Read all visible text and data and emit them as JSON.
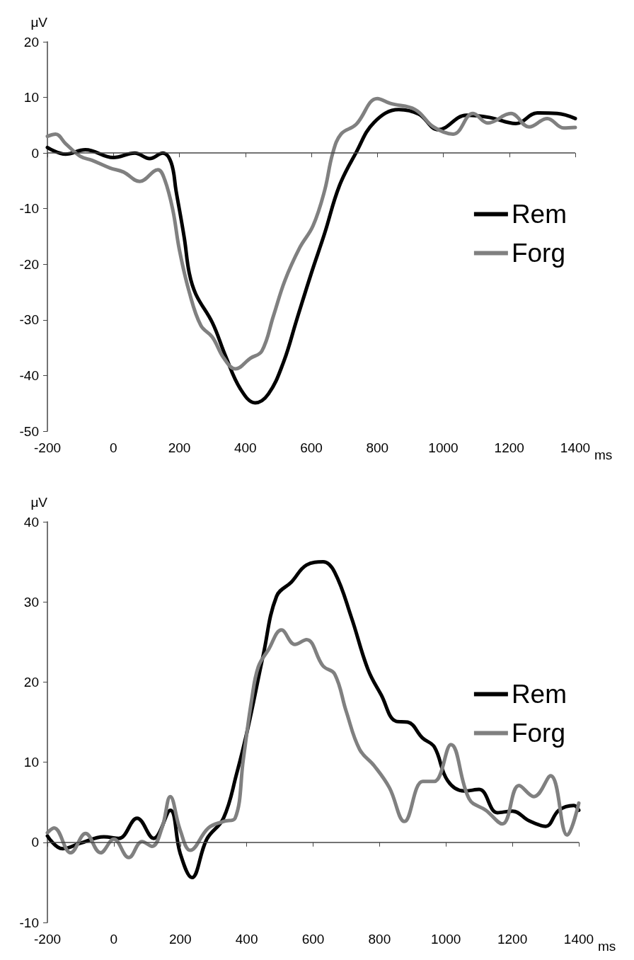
{
  "chart_data": [
    {
      "type": "line",
      "xlabel": "ms",
      "ylabel": "μV",
      "xlim": [
        -200,
        1400
      ],
      "xticks": [
        -200,
        0,
        200,
        400,
        600,
        800,
        1000,
        1200,
        1400
      ],
      "ylim": [
        -50,
        20
      ],
      "yticks": [
        -50,
        -40,
        -30,
        -20,
        -10,
        0,
        10,
        20
      ],
      "grid": false,
      "ref_lines": [
        {
          "axis": "y",
          "value": 0,
          "color": "#444444"
        }
      ],
      "legend": "right",
      "marker": "none",
      "series": [
        {
          "name": "Rem",
          "color": "#000000",
          "x": [
            -200,
            -145,
            -85,
            0,
            65,
            110,
            150,
            175,
            190,
            215,
            230,
            250,
            300,
            340,
            385,
            430,
            470,
            515,
            555,
            600,
            640,
            685,
            735,
            790,
            865,
            925,
            985,
            1070,
            1140,
            1220,
            1285,
            1345,
            1400
          ],
          "values": [
            1,
            -0.2,
            0.6,
            -0.8,
            0,
            -1,
            0,
            -1.7,
            -6.8,
            -15.3,
            -21.6,
            -25.4,
            -30.5,
            -36.5,
            -42.4,
            -44.9,
            -43.3,
            -37.7,
            -30.1,
            -21.6,
            -14.5,
            -5.9,
            0,
            5.5,
            7.8,
            7,
            4.2,
            6.8,
            6.4,
            5.3,
            7.2,
            7.1,
            6.2
          ]
        },
        {
          "name": "Forg",
          "color": "#808080",
          "x": [
            -200,
            -175,
            -145,
            -100,
            -65,
            -10,
            30,
            80,
            135,
            155,
            180,
            200,
            230,
            265,
            300,
            335,
            370,
            415,
            450,
            485,
            520,
            565,
            605,
            640,
            665,
            690,
            735,
            800,
            840,
            915,
            970,
            1030,
            1090,
            1135,
            1205,
            1260,
            1315,
            1365,
            1400
          ],
          "values": [
            3,
            3.4,
            1.7,
            -0.6,
            -1.3,
            -2.7,
            -3.4,
            -5.1,
            -3,
            -4.7,
            -10.2,
            -17.4,
            -25,
            -31,
            -33.1,
            -36.9,
            -38.8,
            -36.9,
            -35.6,
            -29.3,
            -22.9,
            -17,
            -13.1,
            -6.8,
            0,
            3.4,
            5.1,
            9.8,
            8.9,
            7.8,
            4.7,
            3.4,
            7.1,
            5.4,
            7.1,
            4.7,
            6.2,
            4.5,
            4.6
          ]
        }
      ]
    },
    {
      "type": "line",
      "xlabel": "ms",
      "ylabel": "μV",
      "xlim": [
        -200,
        1400
      ],
      "xticks": [
        -200,
        0,
        200,
        400,
        600,
        800,
        1000,
        1200,
        1400
      ],
      "ylim": [
        -10,
        40
      ],
      "yticks": [
        -10,
        0,
        10,
        20,
        30,
        40
      ],
      "grid": false,
      "ref_lines": [
        {
          "axis": "y",
          "value": 0,
          "color": "#444444"
        }
      ],
      "legend": "right",
      "marker": "none",
      "series": [
        {
          "name": "Rem",
          "color": "#000000",
          "x": [
            -200,
            -155,
            -100,
            -30,
            15,
            70,
            120,
            170,
            200,
            235,
            280,
            330,
            370,
            405,
            450,
            490,
            535,
            580,
            630,
            665,
            715,
            765,
            805,
            850,
            885,
            930,
            965,
            1005,
            1055,
            1100,
            1155,
            1200,
            1250,
            1300,
            1340,
            1385,
            1400
          ],
          "values": [
            0.8,
            -0.8,
            -0.1,
            0.7,
            0.5,
            3,
            0.5,
            4,
            -1.4,
            -4.4,
            0.4,
            3,
            8.6,
            14.5,
            23.4,
            30.7,
            32.5,
            34.6,
            35,
            33.7,
            28.1,
            21.6,
            18.4,
            15.1,
            15,
            13,
            11.9,
            7.7,
            6.4,
            6.6,
            3.7,
            3.9,
            2.7,
            2,
            4,
            4.6,
            4
          ]
        },
        {
          "name": "Forg",
          "color": "#808080",
          "x": [
            -200,
            -180,
            -130,
            -85,
            -40,
            0,
            45,
            85,
            115,
            145,
            170,
            200,
            230,
            285,
            330,
            365,
            390,
            415,
            435,
            465,
            505,
            545,
            580,
            630,
            665,
            700,
            740,
            785,
            830,
            875,
            930,
            965,
            1015,
            1070,
            1120,
            1170,
            1220,
            1265,
            1315,
            1365,
            1400
          ],
          "values": [
            1.2,
            1.8,
            -1.3,
            1.1,
            -1.3,
            0.4,
            -1.9,
            0.1,
            -0.5,
            1.8,
            5.7,
            1.5,
            -1,
            1.8,
            2.6,
            3,
            10.4,
            17.8,
            21.9,
            24,
            26.5,
            24.7,
            25.3,
            22,
            21,
            16.3,
            11.6,
            9.5,
            6.8,
            2.6,
            7.6,
            7.6,
            12.2,
            5.4,
            4,
            2.3,
            7.1,
            5.7,
            8.3,
            0.9,
            4.9
          ]
        }
      ]
    }
  ]
}
